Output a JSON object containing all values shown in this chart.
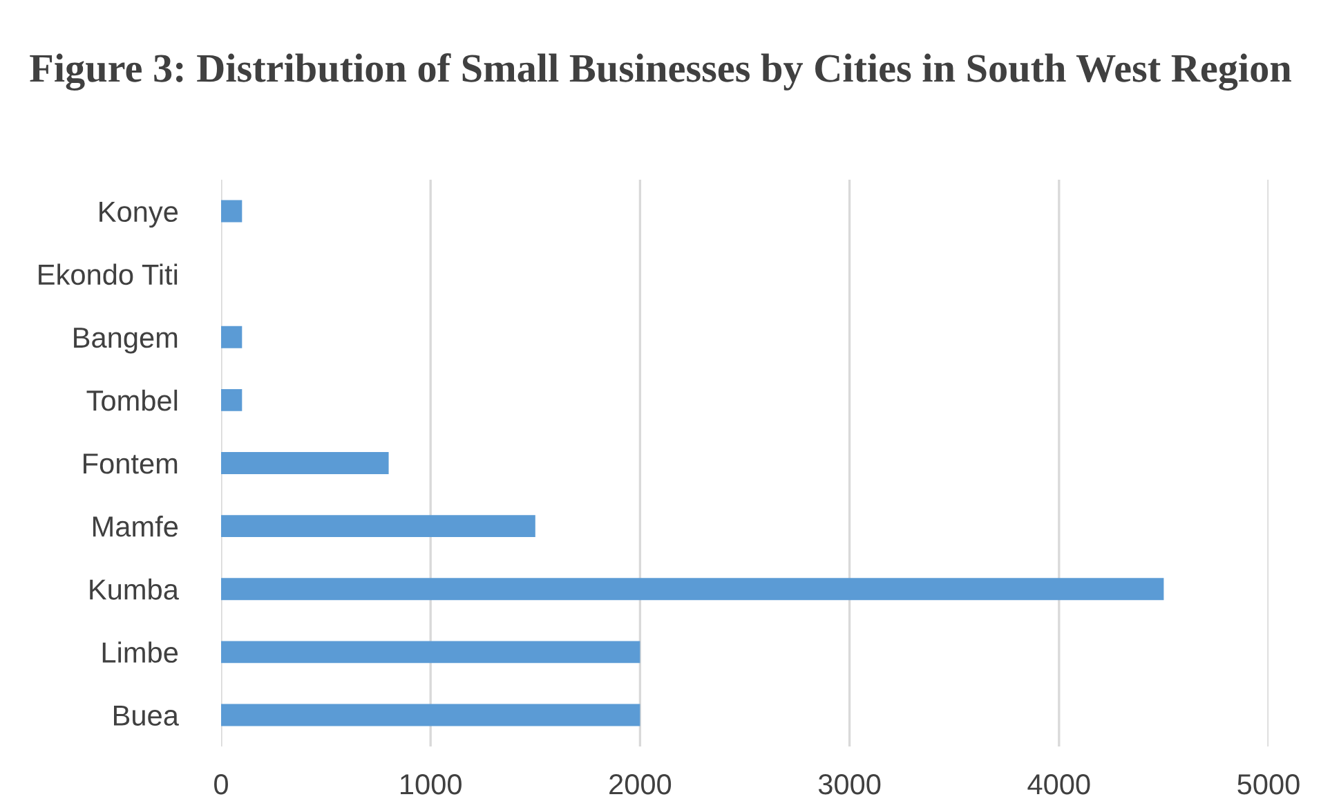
{
  "chart_data": {
    "type": "bar",
    "orientation": "horizontal",
    "title": "Figure 3: Distribution of Small Businesses by Cities in South West Region",
    "categories": [
      "Konye",
      "Ekondo Titi",
      "Bangem",
      "Tombel",
      "Fontem",
      "Mamfe",
      "Kumba",
      "Limbe",
      "Buea"
    ],
    "values": [
      100,
      0,
      100,
      100,
      800,
      1500,
      4500,
      2000,
      2000
    ],
    "color": "#5b9bd5",
    "xlim": [
      0,
      5000
    ],
    "xticks": [
      0,
      1000,
      2000,
      3000,
      4000,
      5000
    ],
    "grid": "x"
  }
}
